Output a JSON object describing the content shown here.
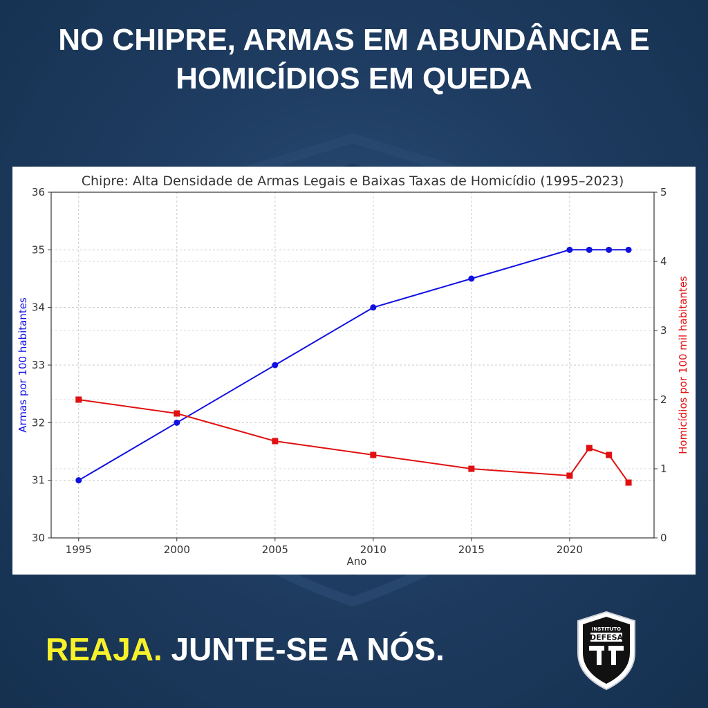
{
  "headline": {
    "line1": "NO CHIPRE, ARMAS EM ABUNDÂNCIA E",
    "line2": "HOMICÍDIOS EM QUEDA"
  },
  "cta": {
    "highlight": "REAJA.",
    "rest": " JUNTE-SE A NÓS."
  },
  "badge": {
    "top_text": "INSTITUTO",
    "name": "DEFESA"
  },
  "colors": {
    "background": "#1f3d62",
    "headline": "#ffffff",
    "cta_highlight": "#f6f12a",
    "series_guns": "#1010e0",
    "series_homicides": "#e01010"
  },
  "chart_data": {
    "type": "line",
    "title": "Chipre: Alta Densidade de Armas Legais e Baixas Taxas de Homicídio (1995–2023)",
    "xlabel": "Ano",
    "xlim": [
      1993.6,
      2024.3
    ],
    "xticks": [
      1995,
      2000,
      2005,
      2010,
      2015,
      2020
    ],
    "grid": true,
    "y_left": {
      "label": "Armas por 100 habitantes",
      "lim": [
        30,
        36
      ],
      "ticks": [
        30,
        31,
        32,
        33,
        34,
        35,
        36
      ]
    },
    "y_right": {
      "label": "Homicídios por 100 mil habitantes",
      "lim": [
        0,
        5
      ],
      "ticks": [
        0,
        1,
        2,
        3,
        4,
        5
      ]
    },
    "series": [
      {
        "name": "Armas por 100 habitantes",
        "axis": "left",
        "marker": "circle",
        "color": "#1010e0",
        "x": [
          1995,
          2000,
          2005,
          2010,
          2015,
          2020,
          2021,
          2022,
          2023
        ],
        "y": [
          31,
          32,
          33,
          34,
          34.5,
          35,
          35,
          35,
          35
        ]
      },
      {
        "name": "Homicídios por 100 mil habitantes",
        "axis": "right",
        "marker": "square",
        "color": "#e01010",
        "x": [
          1995,
          2000,
          2005,
          2010,
          2015,
          2020,
          2021,
          2022,
          2023
        ],
        "y": [
          2.0,
          1.8,
          1.4,
          1.2,
          1.0,
          0.9,
          1.3,
          1.2,
          0.8
        ]
      }
    ]
  }
}
